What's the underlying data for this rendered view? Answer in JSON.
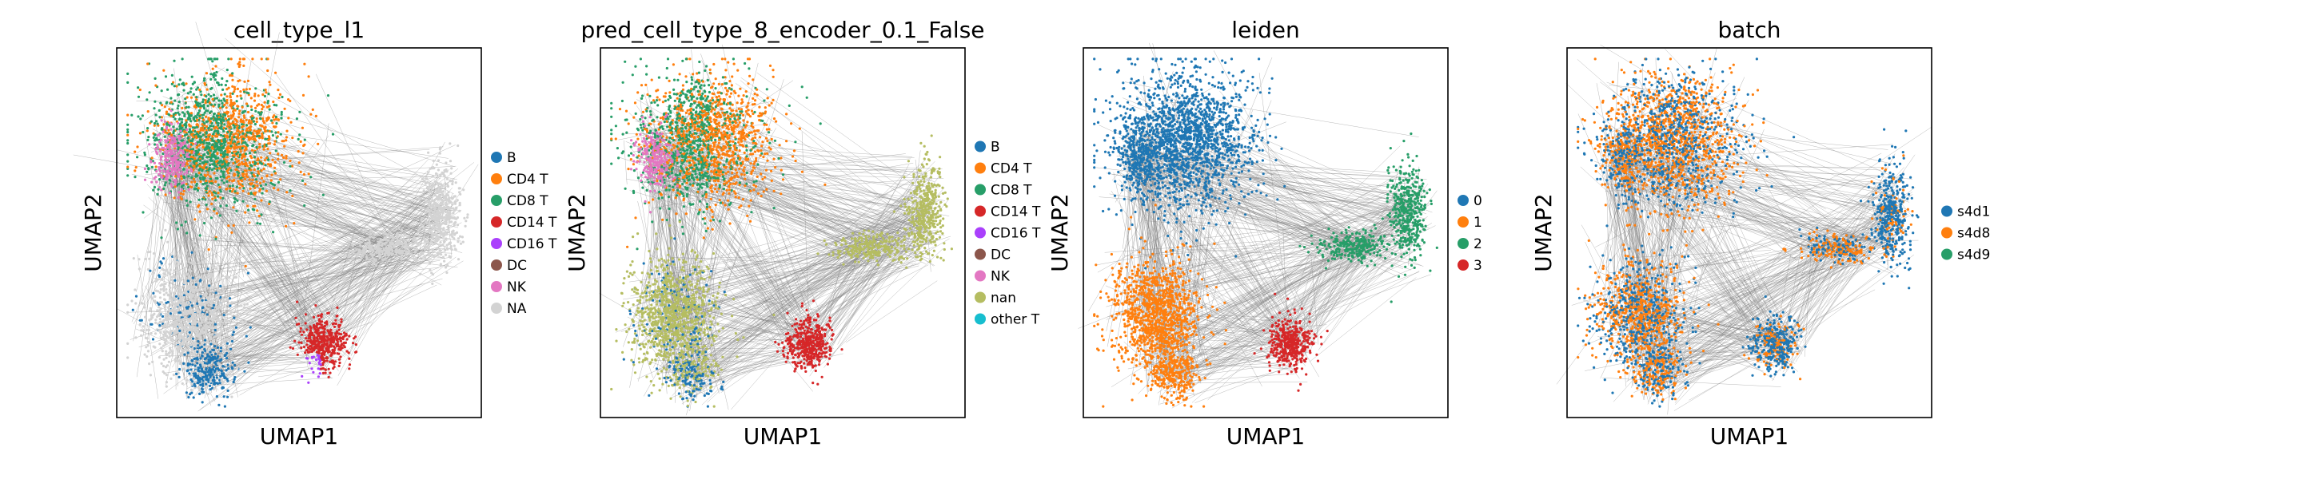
{
  "figure": {
    "background": "#ffffff",
    "edge_color": "#808080",
    "axes_color": "#000000"
  },
  "chart_data": [
    {
      "type": "scatter",
      "title": "cell_type_l1",
      "xlabel": "UMAP1",
      "ylabel": "UMAP2",
      "grid": false,
      "ticks": false,
      "legend": {
        "placement": "right",
        "items": [
          {
            "label": "B",
            "color": "#1f77b4"
          },
          {
            "label": "CD4 T",
            "color": "#ff7f0e"
          },
          {
            "label": "CD8 T",
            "color": "#279e68"
          },
          {
            "label": "CD14 T",
            "color": "#d62728"
          },
          {
            "label": "CD16 T",
            "color": "#aa40fc"
          },
          {
            "label": "DC",
            "color": "#8c564b"
          },
          {
            "label": "NK",
            "color": "#e377c2"
          },
          {
            "label": "NA",
            "color": "#d3d3d3"
          }
        ]
      },
      "scheme": "celltype_true"
    },
    {
      "type": "scatter",
      "title": "pred_cell_type_8_encoder_0.1_False",
      "xlabel": "UMAP1",
      "ylabel": "UMAP2",
      "grid": false,
      "ticks": false,
      "legend": {
        "placement": "right",
        "items": [
          {
            "label": "B",
            "color": "#1f77b4"
          },
          {
            "label": "CD4 T",
            "color": "#ff7f0e"
          },
          {
            "label": "CD8 T",
            "color": "#279e68"
          },
          {
            "label": "CD14 T",
            "color": "#d62728"
          },
          {
            "label": "CD16 T",
            "color": "#aa40fc"
          },
          {
            "label": "DC",
            "color": "#8c564b"
          },
          {
            "label": "NK",
            "color": "#e377c2"
          },
          {
            "label": "nan",
            "color": "#b5bd61"
          },
          {
            "label": "other T",
            "color": "#17becf"
          }
        ]
      },
      "scheme": "celltype_pred"
    },
    {
      "type": "scatter",
      "title": "leiden",
      "xlabel": "UMAP1",
      "ylabel": "UMAP2",
      "grid": false,
      "ticks": false,
      "legend": {
        "placement": "right",
        "items": [
          {
            "label": "0",
            "color": "#1f77b4"
          },
          {
            "label": "1",
            "color": "#ff7f0e"
          },
          {
            "label": "2",
            "color": "#279e68"
          },
          {
            "label": "3",
            "color": "#d62728"
          }
        ]
      },
      "scheme": "leiden"
    },
    {
      "type": "scatter",
      "title": "batch",
      "xlabel": "UMAP1",
      "ylabel": "UMAP2",
      "grid": false,
      "ticks": false,
      "legend": {
        "placement": "right",
        "items": [
          {
            "label": "s4d1",
            "color": "#1f77b4"
          },
          {
            "label": "s4d8",
            "color": "#ff7f0e"
          },
          {
            "label": "s4d9",
            "color": "#279e68"
          }
        ]
      },
      "scheme": "batch"
    }
  ]
}
